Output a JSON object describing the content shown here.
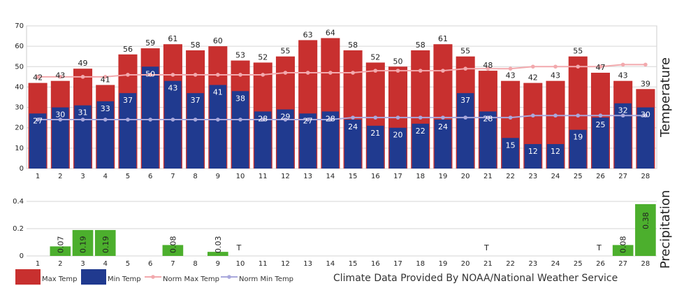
{
  "chart_data": [
    {
      "type": "bar",
      "ylabel": "Temperature",
      "ylim": [
        0,
        70
      ],
      "yticks": [
        0,
        10,
        20,
        30,
        40,
        50,
        60,
        70
      ],
      "categories": [
        "1",
        "2",
        "3",
        "4",
        "5",
        "6",
        "7",
        "8",
        "9",
        "10",
        "11",
        "12",
        "13",
        "14",
        "15",
        "16",
        "17",
        "18",
        "19",
        "20",
        "21",
        "22",
        "23",
        "24",
        "25",
        "26",
        "27",
        "28"
      ],
      "series": [
        {
          "name": "Max Temp",
          "color": "#c8302f",
          "values": [
            42,
            43,
            49,
            41,
            56,
            59,
            61,
            58,
            60,
            53,
            52,
            55,
            63,
            64,
            58,
            52,
            50,
            58,
            61,
            55,
            48,
            43,
            42,
            43,
            55,
            47,
            43,
            39
          ]
        },
        {
          "name": "Min Temp",
          "color": "#203a8f",
          "values": [
            27,
            30,
            31,
            33,
            37,
            50,
            43,
            37,
            41,
            38,
            28,
            29,
            27,
            28,
            24,
            21,
            20,
            22,
            24,
            37,
            28,
            15,
            12,
            12,
            19,
            25,
            32,
            30
          ]
        },
        {
          "name": "Norm Max Temp",
          "type": "line",
          "color": "#f2a9ad",
          "values": [
            45,
            45,
            45,
            45,
            46,
            46,
            46,
            46,
            46,
            46,
            46,
            47,
            47,
            47,
            47,
            48,
            48,
            48,
            48,
            49,
            49,
            49,
            50,
            50,
            50,
            50,
            51,
            51
          ]
        },
        {
          "name": "Norm Min Temp",
          "type": "line",
          "color": "#a9a8dc",
          "values": [
            24,
            24,
            24,
            24,
            24,
            24,
            24,
            24,
            24,
            24,
            24,
            24,
            24,
            24,
            25,
            25,
            25,
            25,
            25,
            25,
            25,
            25,
            26,
            26,
            26,
            26,
            26,
            26
          ]
        }
      ]
    },
    {
      "type": "bar",
      "ylabel": "Precipitation",
      "ylim": [
        0,
        0.4
      ],
      "yticks": [
        "0",
        "0.2",
        "0.4"
      ],
      "categories": [
        "1",
        "2",
        "3",
        "4",
        "5",
        "6",
        "7",
        "8",
        "9",
        "10",
        "11",
        "12",
        "13",
        "14",
        "15",
        "16",
        "17",
        "18",
        "19",
        "20",
        "21",
        "22",
        "23",
        "24",
        "25",
        "26",
        "27",
        "28"
      ],
      "series": [
        {
          "name": "Precipitation",
          "color": "#4caf2d",
          "values": [
            0,
            0.07,
            0.19,
            0.19,
            0,
            0,
            0.08,
            0,
            0.03,
            0,
            0,
            0,
            0,
            0,
            0,
            0,
            0,
            0,
            0,
            0,
            0,
            0,
            0,
            0,
            0,
            0,
            0.08,
            0.38
          ],
          "labels": [
            "",
            "0.07",
            "0.19",
            "0.19",
            "",
            "",
            "0.08",
            "",
            "0.03",
            "T",
            "",
            "",
            "",
            "",
            "",
            "",
            "",
            "",
            "",
            "",
            "T",
            "",
            "",
            "",
            "",
            "T",
            "0.08",
            "0.38"
          ]
        }
      ]
    }
  ],
  "legend": {
    "items": [
      {
        "label": "Max Temp",
        "color": "#c8302f",
        "kind": "box"
      },
      {
        "label": "Min Temp",
        "color": "#203a8f",
        "kind": "box"
      },
      {
        "label": "Norm Max Temp",
        "color": "#f2a9ad",
        "kind": "line"
      },
      {
        "label": "Norm Min Temp",
        "color": "#a9a8dc",
        "kind": "line"
      }
    ]
  },
  "credit": "Climate Data Provided By NOAA/National Weather Service"
}
